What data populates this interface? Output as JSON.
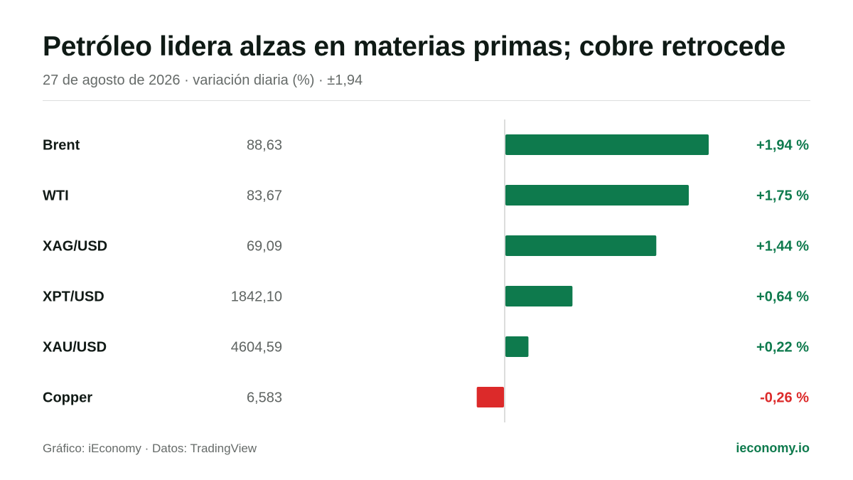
{
  "header": {
    "title": "Petróleo lidera alzas en materias primas; cobre retrocede",
    "subtitle": "27 de agosto de 2026 · variación diaria (%) · ±1,94"
  },
  "footer": {
    "credit": "Gráfico: iEconomy · Datos: TradingView",
    "brand": "ieconomy.io"
  },
  "colors": {
    "positive": "#0e7a4d",
    "negative": "#dc2a2a",
    "label": "#111a16",
    "price": "#5f6462",
    "axis": "#d0d2d1"
  },
  "chart_data": {
    "type": "bar",
    "orientation": "horizontal",
    "categories": [
      "Brent",
      "WTI",
      "XAG/USD",
      "XPT/USD",
      "XAU/USD",
      "Copper"
    ],
    "prices": [
      "88,63",
      "83,67",
      "69,09",
      "1842,10",
      "4604,59",
      "6,583"
    ],
    "values": [
      1.94,
      1.75,
      1.44,
      0.64,
      0.22,
      -0.26
    ],
    "value_labels": [
      "+1,94 %",
      "+1,75 %",
      "+1,44 %",
      "+0,64 %",
      "+0,22 %",
      "-0,26 %"
    ],
    "xlim": [
      -0.26,
      1.94
    ],
    "grid": false
  }
}
